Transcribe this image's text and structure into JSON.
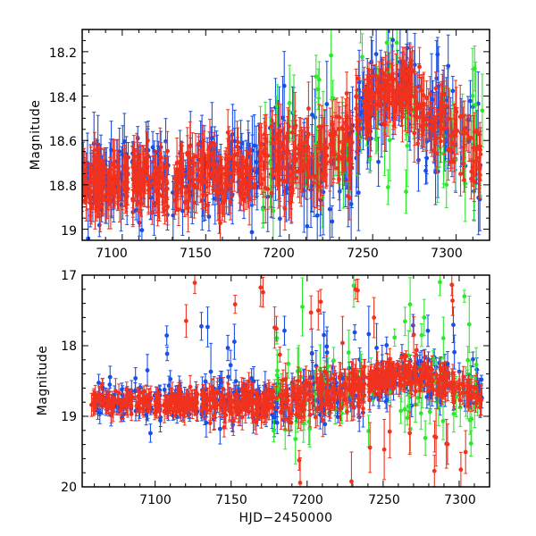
{
  "figure": {
    "colors": {
      "blue": "#1a4fe6",
      "red": "#f0321e",
      "green": "#2ee82e",
      "frame": "#000000"
    }
  },
  "chart_data": [
    {
      "type": "scatter",
      "panel": "top",
      "title": "",
      "xlabel": "",
      "ylabel": "Magnitude",
      "xlim": [
        7076,
        7320
      ],
      "ylim": [
        19.05,
        18.1
      ],
      "y_inverted": true,
      "xticks": [
        7100,
        7150,
        7200,
        7250,
        7300
      ],
      "xtick_labels": [
        "7100",
        "7150",
        "7200",
        "7250",
        "7300"
      ],
      "yticks": [
        18.2,
        18.4,
        18.6,
        18.8,
        19
      ],
      "ytick_labels": [
        "18.2",
        "18.4",
        "18.6",
        "18.8",
        "19"
      ],
      "series": [
        {
          "name": "blue",
          "color": "#1a4fe6",
          "segments": [
            {
              "x": [
                7076,
                7104
              ],
              "mag": [
                18.76,
                18.76
              ],
              "scatter": 0.09,
              "err": 0.08,
              "n": 60
            },
            {
              "x": [
                7106,
                7128
              ],
              "mag": [
                18.77,
                18.77
              ],
              "scatter": 0.09,
              "err": 0.08,
              "n": 45
            },
            {
              "x": [
                7130,
                7182
              ],
              "mag": [
                18.75,
                18.72
              ],
              "scatter": 0.11,
              "err": 0.09,
              "n": 85
            },
            {
              "x": [
                7184,
                7238
              ],
              "mag": [
                18.72,
                18.62
              ],
              "scatter": 0.13,
              "err": 0.11,
              "n": 85
            },
            {
              "x": [
                7240,
                7270
              ],
              "mag": [
                18.52,
                18.36
              ],
              "scatter": 0.12,
              "err": 0.1,
              "n": 55
            },
            {
              "x": [
                7270,
                7315
              ],
              "mag": [
                18.38,
                18.72
              ],
              "scatter": 0.13,
              "err": 0.1,
              "n": 70
            }
          ]
        },
        {
          "name": "green",
          "color": "#2ee82e",
          "segments": [
            {
              "x": [
                7182,
                7238
              ],
              "mag": [
                18.68,
                18.6
              ],
              "scatter": 0.15,
              "err": 0.12,
              "n": 32
            },
            {
              "x": [
                7240,
                7316
              ],
              "mag": [
                18.45,
                18.66
              ],
              "scatter": 0.16,
              "err": 0.12,
              "n": 40
            }
          ]
        },
        {
          "name": "red",
          "color": "#f0321e",
          "segments": [
            {
              "x": [
                7076,
                7104
              ],
              "mag": [
                18.78,
                18.78
              ],
              "scatter": 0.06,
              "err": 0.07,
              "n": 110
            },
            {
              "x": [
                7106,
                7128
              ],
              "mag": [
                18.78,
                18.78
              ],
              "scatter": 0.06,
              "err": 0.07,
              "n": 80
            },
            {
              "x": [
                7130,
                7180
              ],
              "mag": [
                18.77,
                18.74
              ],
              "scatter": 0.07,
              "err": 0.07,
              "n": 150
            },
            {
              "x": [
                7182,
                7238
              ],
              "mag": [
                18.72,
                18.62
              ],
              "scatter": 0.09,
              "err": 0.09,
              "n": 150
            },
            {
              "x": [
                7240,
                7270
              ],
              "mag": [
                18.46,
                18.36
              ],
              "scatter": 0.07,
              "err": 0.07,
              "n": 110
            },
            {
              "x": [
                7270,
                7315
              ],
              "mag": [
                18.38,
                18.7
              ],
              "scatter": 0.08,
              "err": 0.08,
              "n": 110
            }
          ]
        }
      ]
    },
    {
      "type": "scatter",
      "panel": "bottom",
      "title": "",
      "xlabel": "HJD−2450000",
      "ylabel": "Magnitude",
      "xlim": [
        7052,
        7320
      ],
      "ylim": [
        20,
        17
      ],
      "y_inverted": true,
      "xticks": [
        7100,
        7150,
        7200,
        7250,
        7300
      ],
      "xtick_labels": [
        "7100",
        "7150",
        "7200",
        "7250",
        "7300"
      ],
      "yticks": [
        17,
        18,
        19,
        20
      ],
      "ytick_labels": [
        "17",
        "18",
        "19",
        "20"
      ],
      "series": [
        {
          "name": "blue",
          "color": "#1a4fe6",
          "segments": [
            {
              "x": [
                7060,
                7104
              ],
              "mag": [
                18.78,
                18.78
              ],
              "scatter": 0.12,
              "err": 0.09,
              "n": 70
            },
            {
              "x": [
                7106,
                7128
              ],
              "mag": [
                18.8,
                18.8
              ],
              "scatter": 0.13,
              "err": 0.09,
              "n": 45
            },
            {
              "x": [
                7130,
                7182
              ],
              "mag": [
                18.82,
                18.78
              ],
              "scatter": 0.18,
              "err": 0.12,
              "n": 95
            },
            {
              "x": [
                7184,
                7238
              ],
              "mag": [
                18.78,
                18.62
              ],
              "scatter": 0.18,
              "err": 0.12,
              "n": 90
            },
            {
              "x": [
                7240,
                7270
              ],
              "mag": [
                18.52,
                18.38
              ],
              "scatter": 0.14,
              "err": 0.1,
              "n": 55
            },
            {
              "x": [
                7270,
                7315
              ],
              "mag": [
                18.38,
                18.72
              ],
              "scatter": 0.16,
              "err": 0.11,
              "n": 70
            }
          ],
          "outliers": [
            {
              "x": [
                7091,
                7180
              ],
              "mag_range": [
                17.6,
                18.5
              ],
              "n": 9
            },
            {
              "x": [
                7185,
                7310
              ],
              "mag_range": [
                17.7,
                18.3
              ],
              "n": 18
            }
          ]
        },
        {
          "name": "green",
          "color": "#2ee82e",
          "segments": [
            {
              "x": [
                7178,
                7238
              ],
              "mag": [
                18.7,
                18.62
              ],
              "scatter": 0.3,
              "err": 0.2,
              "n": 38
            },
            {
              "x": [
                7240,
                7316
              ],
              "mag": [
                18.48,
                18.66
              ],
              "scatter": 0.3,
              "err": 0.2,
              "n": 44
            }
          ],
          "outliers": [
            {
              "x": [
                7180,
                7312
              ],
              "mag_range": [
                17.0,
                17.9
              ],
              "n": 10
            }
          ]
        },
        {
          "name": "red",
          "color": "#f0321e",
          "segments": [
            {
              "x": [
                7058,
                7104
              ],
              "mag": [
                18.8,
                18.8
              ],
              "scatter": 0.08,
              "err": 0.1,
              "n": 110
            },
            {
              "x": [
                7106,
                7128
              ],
              "mag": [
                18.8,
                18.8
              ],
              "scatter": 0.08,
              "err": 0.1,
              "n": 80
            },
            {
              "x": [
                7130,
                7180
              ],
              "mag": [
                18.8,
                18.78
              ],
              "scatter": 0.11,
              "err": 0.12,
              "n": 150
            },
            {
              "x": [
                7182,
                7238
              ],
              "mag": [
                18.78,
                18.62
              ],
              "scatter": 0.14,
              "err": 0.14,
              "n": 150
            },
            {
              "x": [
                7240,
                7270
              ],
              "mag": [
                18.5,
                18.36
              ],
              "scatter": 0.1,
              "err": 0.1,
              "n": 110
            },
            {
              "x": [
                7270,
                7315
              ],
              "mag": [
                18.38,
                18.72
              ],
              "scatter": 0.11,
              "err": 0.12,
              "n": 110
            }
          ],
          "outliers": [
            {
              "x": [
                7115,
                7310
              ],
              "mag_range": [
                17.1,
                18.2
              ],
              "n": 18
            },
            {
              "x": [
                7190,
                7305
              ],
              "mag_range": [
                19.2,
                20.0
              ],
              "n": 14
            }
          ]
        }
      ]
    }
  ]
}
